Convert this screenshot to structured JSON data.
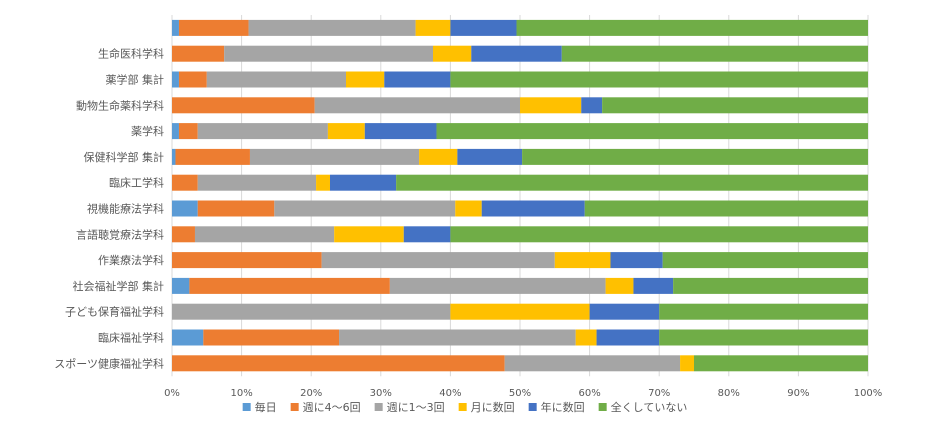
{
  "chart_data": {
    "type": "bar",
    "orientation": "horizontal",
    "stacked": "percent",
    "categories": [
      "",
      "生命医科学科",
      "薬学部 集計",
      "動物生命薬科学科",
      "薬学科",
      "保健科学部 集計",
      "臨床工学科",
      "視機能療法学科",
      "言語聴覚療法学科",
      "作業療法学科",
      "社会福祉学部 集計",
      "子ども保育福祉学科",
      "臨床福祉学科",
      "スポーツ健康福祉学科"
    ],
    "series": [
      {
        "name": "毎日",
        "color": "#5B9BD5",
        "values": [
          1,
          0,
          1,
          0,
          1,
          0.5,
          0,
          3.7,
          0,
          0,
          2.5,
          0,
          4.5,
          0
        ]
      },
      {
        "name": "週に4～6回",
        "color": "#ED7D31",
        "values": [
          10,
          7.5,
          4,
          20.5,
          2.7,
          10.7,
          3.7,
          11,
          3.3,
          21.5,
          28.8,
          0,
          19.5,
          47.8
        ]
      },
      {
        "name": "週に1～3回",
        "color": "#A5A5A5",
        "values": [
          24,
          30,
          20,
          29.5,
          18.7,
          24.3,
          17,
          26,
          20,
          33.5,
          31,
          40,
          34,
          25.2
        ]
      },
      {
        "name": "月に数回",
        "color": "#FFC000",
        "values": [
          5,
          5.5,
          5.5,
          8.8,
          5.3,
          5.5,
          2,
          3.8,
          10,
          8,
          4,
          20,
          3,
          2
        ]
      },
      {
        "name": "年に数回",
        "color": "#4472C4",
        "values": [
          9.5,
          13,
          9.5,
          3,
          10.3,
          9.3,
          9.5,
          14.8,
          6.7,
          7.5,
          5.7,
          10,
          9,
          0
        ]
      },
      {
        "name": "全くしていない",
        "color": "#70AD47",
        "values": [
          50.5,
          44,
          60,
          38.2,
          62,
          49.7,
          67.8,
          40.7,
          60,
          29.5,
          28,
          30,
          30,
          25
        ]
      }
    ],
    "xlim": [
      0,
      100
    ],
    "x_ticks": [
      "0%",
      "10%",
      "20%",
      "30%",
      "40%",
      "50%",
      "60%",
      "70%",
      "80%",
      "90%",
      "100%"
    ],
    "legend_position": "bottom",
    "grid": true
  }
}
